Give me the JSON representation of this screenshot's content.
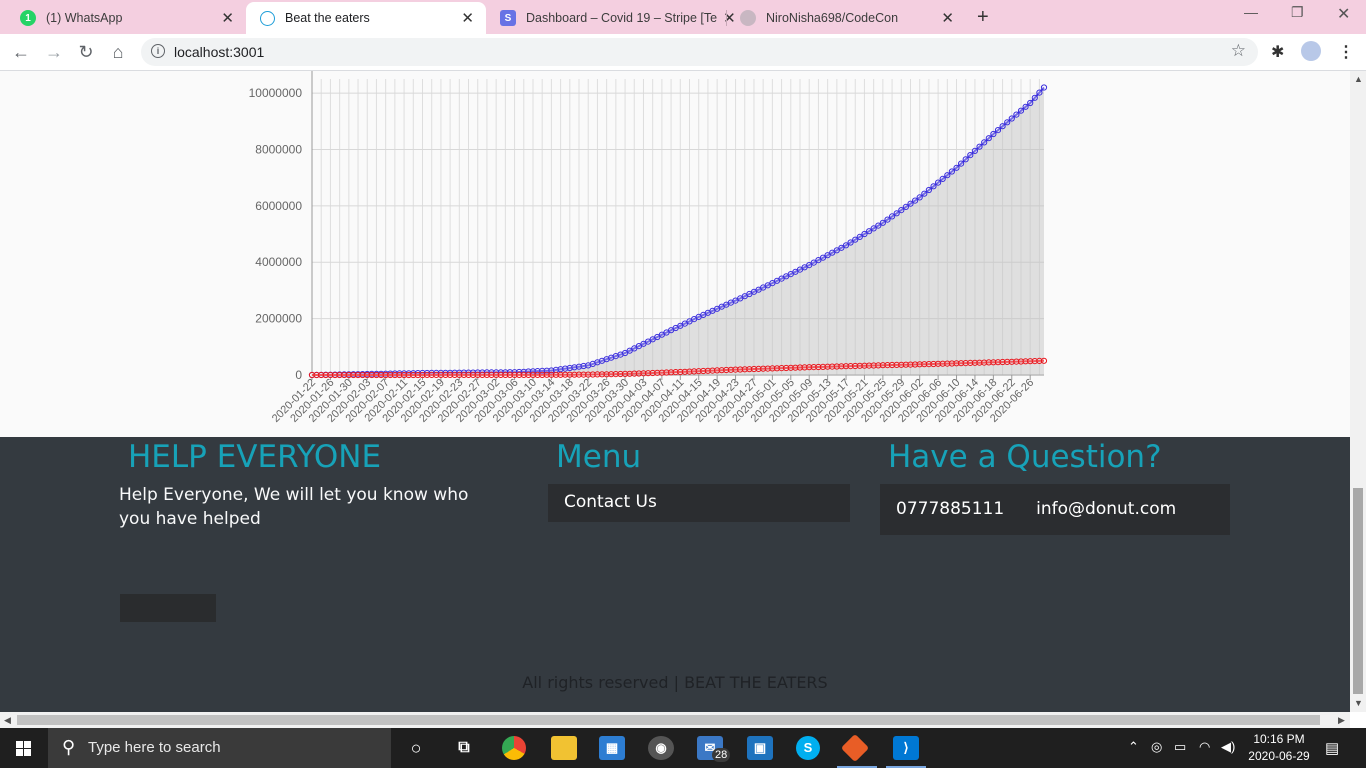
{
  "browser": {
    "tabs": [
      {
        "label": "(1) WhatsApp",
        "icon": "whatsapp-icon",
        "color": "#25d366"
      },
      {
        "label": "Beat the eaters",
        "icon": "react-icon",
        "color": "#1f9ed8"
      },
      {
        "label": "Dashboard – Covid 19 – Stripe [Te",
        "icon": "stripe-icon",
        "color": "#6772e5"
      },
      {
        "label": "NiroNisha698/CodeCon",
        "icon": "github-icon",
        "color": "#c8b7c2"
      }
    ],
    "url": "localhost:3001"
  },
  "chart_data": {
    "type": "area",
    "title": "",
    "ylim": [
      0,
      10500000
    ],
    "yticks": [
      0,
      2000000,
      4000000,
      6000000,
      8000000,
      10000000
    ],
    "ytick_labels": [
      "0",
      "2000000",
      "4000000",
      "6000000",
      "8000000",
      "10000000"
    ],
    "xtick_labels": [
      "2020-01-22",
      "2020-01-26",
      "2020-01-30",
      "2020-02-03",
      "2020-02-07",
      "2020-02-11",
      "2020-02-15",
      "2020-02-19",
      "2020-02-23",
      "2020-02-27",
      "2020-03-02",
      "2020-03-06",
      "2020-03-10",
      "2020-03-14",
      "2020-03-18",
      "2020-03-22",
      "2020-03-26",
      "2020-03-30",
      "2020-04-03",
      "2020-04-07",
      "2020-04-11",
      "2020-04-15",
      "2020-04-19",
      "2020-04-23",
      "2020-04-27",
      "2020-05-01",
      "2020-05-05",
      "2020-05-09",
      "2020-05-13",
      "2020-05-17",
      "2020-05-21",
      "2020-05-25",
      "2020-05-29",
      "2020-06-02",
      "2020-06-06",
      "2020-06-10",
      "2020-06-14",
      "2020-06-18",
      "2020-06-22",
      "2020-06-26"
    ],
    "series": [
      {
        "color": "#3b2fdc",
        "x": [
          "2020-01-22",
          "2020-02-15",
          "2020-03-06",
          "2020-03-14",
          "2020-03-22",
          "2020-03-30",
          "2020-04-07",
          "2020-04-15",
          "2020-04-23",
          "2020-05-01",
          "2020-05-09",
          "2020-05-17",
          "2020-05-25",
          "2020-06-02",
          "2020-06-10",
          "2020-06-18",
          "2020-06-26",
          "2020-06-29"
        ],
        "values": [
          600,
          70000,
          100000,
          160000,
          340000,
          780000,
          1430000,
          2060000,
          2640000,
          3260000,
          3900000,
          4600000,
          5400000,
          6300000,
          7350000,
          8550000,
          9650000,
          10200000
        ]
      },
      {
        "color": "#e8141b",
        "x": [
          "2020-01-22",
          "2020-02-15",
          "2020-03-06",
          "2020-03-14",
          "2020-03-22",
          "2020-03-30",
          "2020-04-07",
          "2020-04-15",
          "2020-04-23",
          "2020-05-01",
          "2020-05-09",
          "2020-05-17",
          "2020-05-25",
          "2020-06-02",
          "2020-06-10",
          "2020-06-18",
          "2020-06-26",
          "2020-06-29"
        ],
        "values": [
          17,
          1700,
          3400,
          5800,
          14700,
          37800,
          81900,
          134000,
          190000,
          234000,
          275000,
          312000,
          346000,
          378000,
          414000,
          450000,
          490000,
          503000
        ]
      }
    ]
  },
  "footer": {
    "help_title": "HELP EVERYONE",
    "help_text": "Help Everyone, We will let you know who you have helped",
    "menu_title": "Menu",
    "menu_item": "Contact Us",
    "question_title": "Have a Question?",
    "phone": "0777885111",
    "email": "info@donut.com",
    "copyright": "All rights reserved | BEAT THE EATERS"
  },
  "taskbar": {
    "search_placeholder": "Type here to search",
    "mail_badge": "28",
    "time": "10:16 PM",
    "date": "2020-06-29"
  }
}
